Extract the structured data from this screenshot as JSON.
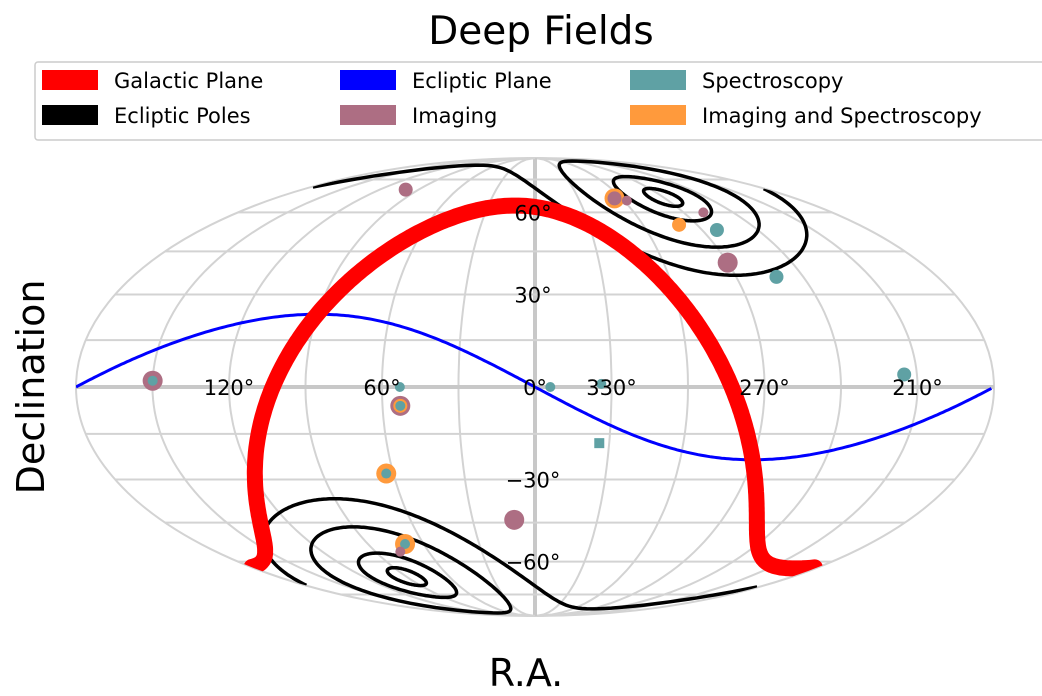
{
  "chart_data": {
    "type": "scatter",
    "projection": "mollweide",
    "title": "Deep Fields",
    "xlabel": "R.A.",
    "ylabel": "Declination",
    "grid": true,
    "legend_position": "top",
    "x_tick_labels": [
      {
        "ra": 120,
        "label": "120°"
      },
      {
        "ra": 60,
        "label": "60°"
      },
      {
        "ra": 0,
        "label": "0°"
      },
      {
        "ra": 330,
        "label": "330°"
      },
      {
        "ra": 270,
        "label": "270°"
      },
      {
        "ra": 210,
        "label": "210°"
      }
    ],
    "y_tick_labels": [
      {
        "dec": 60,
        "label": "60°"
      },
      {
        "dec": 30,
        "label": "30°"
      },
      {
        "dec": -30,
        "label": "−30°"
      },
      {
        "dec": -60,
        "label": "−60°"
      }
    ],
    "legend": [
      {
        "key": "galactic",
        "label": "Galactic Plane",
        "color": "#ff0000"
      },
      {
        "key": "ecl_poles",
        "label": "Ecliptic Poles",
        "color": "#000000"
      },
      {
        "key": "ecliptic",
        "label": "Ecliptic Plane",
        "color": "#0000ff"
      },
      {
        "key": "imaging",
        "label": "Imaging",
        "color": "#ad6e83"
      },
      {
        "key": "spectro",
        "label": "Spectroscopy",
        "color": "#5fa1a4"
      },
      {
        "key": "img_spec",
        "label": "Imaging and Spectroscopy",
        "color": "#ff9a3c"
      }
    ],
    "points": [
      {
        "ra": 150,
        "dec": 2,
        "cat": "imaging",
        "size": "large"
      },
      {
        "ra": 150,
        "dec": 2,
        "cat": "spectro",
        "size": "small"
      },
      {
        "ra": 100,
        "dec": 70,
        "cat": "imaging",
        "size": "medium"
      },
      {
        "ra": 53,
        "dec": 0,
        "cat": "spectro",
        "size": "small"
      },
      {
        "ra": 53,
        "dec": -6,
        "cat": "imaging",
        "size": "large"
      },
      {
        "ra": 53,
        "dec": -6,
        "cat": "img_spec",
        "size": "medium"
      },
      {
        "ra": 53,
        "dec": -6,
        "cat": "spectro",
        "size": "small"
      },
      {
        "ra": 63,
        "dec": -28,
        "cat": "img_spec",
        "size": "large"
      },
      {
        "ra": 63,
        "dec": -28,
        "cat": "spectro",
        "size": "small"
      },
      {
        "ra": 70,
        "dec": -53,
        "cat": "img_spec",
        "size": "large"
      },
      {
        "ra": 70,
        "dec": -53,
        "cat": "spectro",
        "size": "small"
      },
      {
        "ra": 76,
        "dec": -56,
        "cat": "imaging",
        "size": "small"
      },
      {
        "ra": 10,
        "dec": -44,
        "cat": "imaging",
        "size": "large"
      },
      {
        "ra": 354,
        "dec": 0,
        "cat": "spectro",
        "size": "small"
      },
      {
        "ra": 334,
        "dec": 1,
        "cat": "spectro",
        "size": "small"
      },
      {
        "ra": 334,
        "dec": -18,
        "cat": "spectro",
        "size": "square"
      },
      {
        "ra": 305,
        "dec": 66,
        "cat": "img_spec",
        "size": "large"
      },
      {
        "ra": 305,
        "dec": 66,
        "cat": "imaging",
        "size": "medium"
      },
      {
        "ra": 298,
        "dec": 65,
        "cat": "imaging",
        "size": "small"
      },
      {
        "ra": 280,
        "dec": 55,
        "cat": "img_spec",
        "size": "medium"
      },
      {
        "ra": 258,
        "dec": 60,
        "cat": "imaging",
        "size": "small"
      },
      {
        "ra": 262,
        "dec": 53,
        "cat": "spectro",
        "size": "medium"
      },
      {
        "ra": 270,
        "dec": 41,
        "cat": "imaging",
        "size": "large"
      },
      {
        "ra": 252,
        "dec": 36,
        "cat": "spectro",
        "size": "medium"
      },
      {
        "ra": 215,
        "dec": 4,
        "cat": "spectro",
        "size": "medium"
      }
    ]
  }
}
